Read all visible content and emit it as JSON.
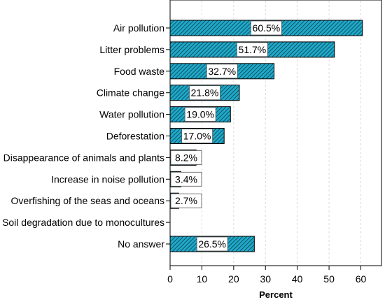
{
  "chart_data": {
    "type": "bar",
    "orientation": "horizontal",
    "categories": [
      "Air pollution",
      "Litter problems",
      "Food waste",
      "Climate change",
      "Water pollution",
      "Deforestation",
      "Disappearance of animals and plants",
      "Increase in noise pollution",
      "Overfishing of the seas and oceans",
      "Soil degradation due to monocultures",
      "No answer"
    ],
    "values": [
      60.5,
      51.7,
      32.7,
      21.8,
      19.0,
      17.0,
      8.2,
      3.4,
      2.7,
      0,
      26.5
    ],
    "data_labels": [
      "60.5%",
      "51.7%",
      "32.7%",
      "21.8%",
      "19.0%",
      "17.0%",
      "8.2%",
      "3.4%",
      "2.7%",
      "",
      "26.5%"
    ],
    "xlabel": "Percent",
    "xlim": [
      0,
      65
    ],
    "xticks": [
      0,
      10,
      20,
      30,
      40,
      50,
      60
    ],
    "grid": "vertical dashed",
    "colors": {
      "bar_fill": "#1fa9c9",
      "hatch": "#0b3a4a",
      "outline": "#000000"
    }
  }
}
